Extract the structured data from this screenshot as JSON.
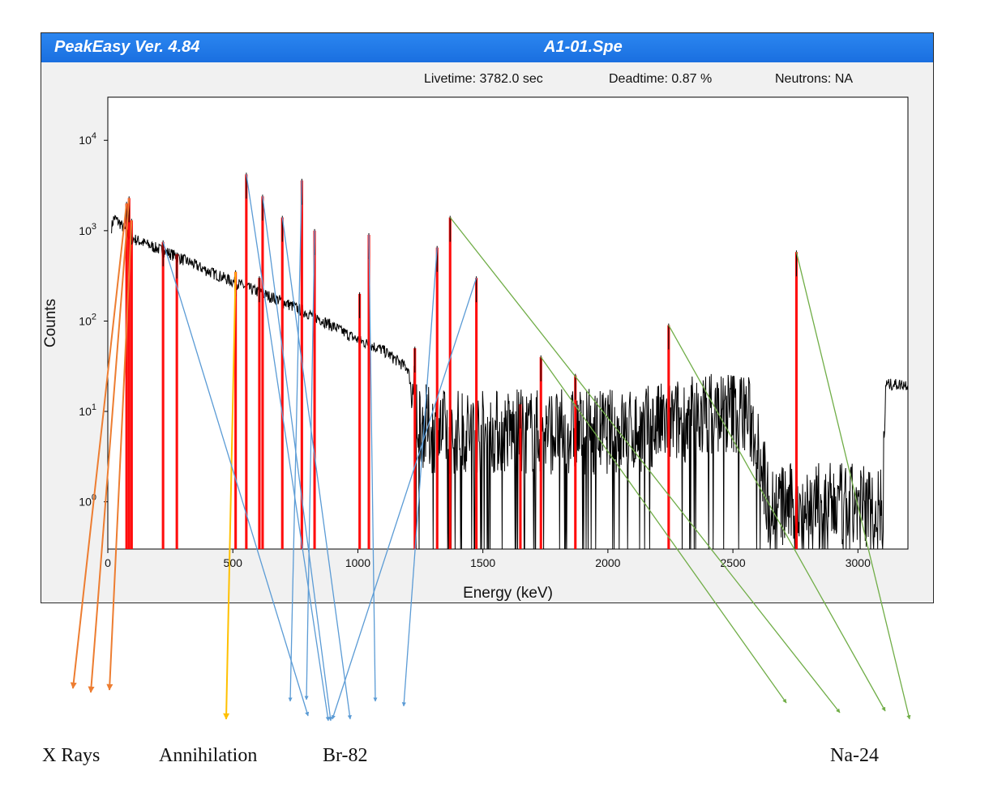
{
  "window": {
    "app_title": "PeakEasy Ver. 4.84",
    "file_name": "A1-01.Spe",
    "livetime": "Livetime: 3782.0 sec",
    "deadtime": "Deadtime: 0.87 %",
    "neutrons": "Neutrons: NA"
  },
  "annotation_groups": [
    {
      "name": "X Rays",
      "color": "#ed7d31"
    },
    {
      "name": "Annihilation",
      "color": "#ffc000"
    },
    {
      "name": "Br-82",
      "color": "#5b9bd5"
    },
    {
      "name": "Na-24",
      "color": "#70ad47"
    }
  ],
  "chart_data": {
    "type": "line",
    "title": "",
    "xlabel": "Energy (keV)",
    "ylabel": "Counts",
    "xlim": [
      0,
      3200
    ],
    "ylim": [
      0.3,
      30000
    ],
    "y_scale": "log",
    "x_ticks": [
      0,
      500,
      1000,
      1500,
      2000,
      2500,
      3000
    ],
    "y_tick_base": "10",
    "y_ticks": [
      {
        "value": 1,
        "exp": "0"
      },
      {
        "value": 10,
        "exp": "1"
      },
      {
        "value": 100,
        "exp": "2"
      },
      {
        "value": 1000,
        "exp": "3"
      },
      {
        "value": 10000,
        "exp": "4"
      }
    ],
    "grid": false,
    "spectrum_color": "#000000",
    "peak_color": "#ff0000",
    "continuum": [
      [
        15,
        1100
      ],
      [
        25,
        1400
      ],
      [
        50,
        1200
      ],
      [
        90,
        850
      ],
      [
        150,
        720
      ],
      [
        250,
        560
      ],
      [
        400,
        360
      ],
      [
        550,
        240
      ],
      [
        700,
        165
      ],
      [
        850,
        105
      ],
      [
        1000,
        62
      ],
      [
        1100,
        48
      ],
      [
        1200,
        30
      ],
      [
        1230,
        10
      ],
      [
        1260,
        7
      ],
      [
        1300,
        6
      ],
      [
        1400,
        6
      ],
      [
        1500,
        6
      ],
      [
        1700,
        6
      ],
      [
        1900,
        6
      ],
      [
        2100,
        6
      ],
      [
        2300,
        8
      ],
      [
        2450,
        10
      ],
      [
        2550,
        10
      ],
      [
        2600,
        5
      ],
      [
        2640,
        1
      ],
      [
        2700,
        0.9
      ],
      [
        3100,
        0.9
      ],
      [
        3110,
        20
      ],
      [
        3200,
        20
      ]
    ],
    "peaks": [
      {
        "energy": 75,
        "counts": 2000,
        "group": "X Rays"
      },
      {
        "energy": 85,
        "counts": 2300,
        "group": "X Rays"
      },
      {
        "energy": 95,
        "counts": 1300,
        "group": "X Rays"
      },
      {
        "energy": 221,
        "counts": 750,
        "group": "Br-82"
      },
      {
        "energy": 276,
        "counts": 550,
        "group": ""
      },
      {
        "energy": 511,
        "counts": 350,
        "group": "Annihilation"
      },
      {
        "energy": 554,
        "counts": 4200,
        "group": "Br-82"
      },
      {
        "energy": 606,
        "counts": 300,
        "group": ""
      },
      {
        "energy": 619,
        "counts": 2400,
        "group": "Br-82"
      },
      {
        "energy": 698,
        "counts": 1400,
        "group": "Br-82"
      },
      {
        "energy": 776,
        "counts": 3600,
        "group": "Br-82"
      },
      {
        "energy": 827,
        "counts": 1000,
        "group": "Br-82"
      },
      {
        "energy": 1007,
        "counts": 200,
        "group": ""
      },
      {
        "energy": 1044,
        "counts": 900,
        "group": "Br-82"
      },
      {
        "energy": 1228,
        "counts": 50,
        "group": ""
      },
      {
        "energy": 1317,
        "counts": 650,
        "group": "Br-82"
      },
      {
        "energy": 1369,
        "counts": 1400,
        "group": "Na-24"
      },
      {
        "energy": 1474,
        "counts": 300,
        "group": "Br-82"
      },
      {
        "energy": 1650,
        "counts": 12,
        "group": ""
      },
      {
        "energy": 1732,
        "counts": 40,
        "group": "Na-24"
      },
      {
        "energy": 1870,
        "counts": 25,
        "group": ""
      },
      {
        "energy": 2243,
        "counts": 90,
        "group": "Na-24"
      },
      {
        "energy": 2754,
        "counts": 580,
        "group": "Na-24"
      }
    ],
    "annotation_lines": [
      {
        "group": "X Rays",
        "from": [
          75,
          2000
        ],
        "to": [
          90,
          850
        ]
      },
      {
        "group": "X Rays",
        "from": [
          85,
          2300
        ],
        "to": [
          112,
          855
        ]
      },
      {
        "group": "X Rays",
        "from": [
          95,
          1300
        ],
        "to": [
          135,
          852
        ]
      },
      {
        "group": "Annihilation",
        "from": [
          511,
          350
        ],
        "to": [
          279,
          888
        ]
      },
      {
        "group": "Br-82",
        "from": [
          221,
          750
        ],
        "to": [
          380,
          884
        ]
      },
      {
        "group": "Br-82",
        "from": [
          554,
          4200
        ],
        "to": [
          405,
          890
        ]
      },
      {
        "group": "Br-82",
        "from": [
          619,
          2400
        ],
        "to": [
          408,
          890
        ]
      },
      {
        "group": "Br-82",
        "from": [
          698,
          1400
        ],
        "to": [
          432,
          888
        ]
      },
      {
        "group": "Br-82",
        "from": [
          776,
          3600
        ],
        "to": [
          358,
          866
        ]
      },
      {
        "group": "Br-82",
        "from": [
          827,
          1000
        ],
        "to": [
          378,
          864
        ]
      },
      {
        "group": "Br-82",
        "from": [
          1044,
          900
        ],
        "to": [
          463,
          866
        ]
      },
      {
        "group": "Br-82",
        "from": [
          1317,
          650
        ],
        "to": [
          498,
          872
        ]
      },
      {
        "group": "Br-82",
        "from": [
          1474,
          300
        ],
        "to": [
          410,
          888
        ]
      },
      {
        "group": "Na-24",
        "from": [
          1369,
          1400
        ],
        "to": [
          1036,
          880
        ]
      },
      {
        "group": "Na-24",
        "from": [
          1732,
          40
        ],
        "to": [
          970,
          868
        ]
      },
      {
        "group": "Na-24",
        "from": [
          2243,
          90
        ],
        "to": [
          1092,
          878
        ]
      },
      {
        "group": "Na-24",
        "from": [
          2754,
          580
        ],
        "to": [
          1122,
          888
        ]
      }
    ]
  }
}
